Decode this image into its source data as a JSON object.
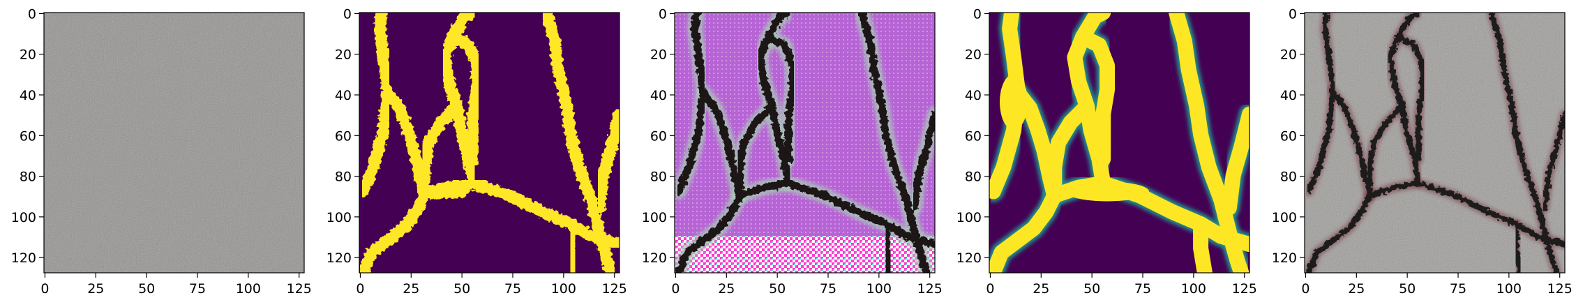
{
  "colors": {
    "background": "#ffffff",
    "axis": "#000000",
    "viridis_dark": "#440154",
    "viridis_yellow": "#fde725",
    "viridis_teal": "#21918c",
    "asphalt_base": "#8f8d8b",
    "crack_dark": "#1c1512",
    "magenta": "#b65ad8"
  },
  "chart_data": [
    {
      "type": "image",
      "content": "asphalt-texture",
      "xlim": [
        0,
        128
      ],
      "ylim": [
        128,
        0
      ],
      "xticks": [
        0,
        25,
        50,
        75,
        100,
        125
      ],
      "yticks": [
        0,
        20,
        40,
        60,
        80,
        100,
        120
      ],
      "title": "",
      "xlabel": "",
      "ylabel": ""
    },
    {
      "type": "image",
      "content": "binary-crack-mask",
      "colormap": "viridis",
      "xlim": [
        0,
        128
      ],
      "ylim": [
        128,
        0
      ],
      "xticks": [
        0,
        25,
        50,
        75,
        100,
        125
      ],
      "yticks": [
        0,
        20,
        40,
        60,
        80,
        100,
        120
      ],
      "title": "",
      "xlabel": "",
      "ylabel": ""
    },
    {
      "type": "image",
      "content": "magenta-crack-texture",
      "xlim": [
        0,
        128
      ],
      "ylim": [
        128,
        0
      ],
      "xticks": [
        0,
        25,
        50,
        75,
        100,
        125
      ],
      "yticks": [
        0,
        20,
        40,
        60,
        80,
        100,
        120
      ],
      "title": "",
      "xlabel": "",
      "ylabel": ""
    },
    {
      "type": "image",
      "content": "smooth-crack-mask",
      "colormap": "viridis",
      "xlim": [
        0,
        128
      ],
      "ylim": [
        128,
        0
      ],
      "xticks": [
        0,
        25,
        50,
        75,
        100,
        125
      ],
      "yticks": [
        0,
        20,
        40,
        60,
        80,
        100,
        120
      ],
      "title": "",
      "xlabel": "",
      "ylabel": ""
    },
    {
      "type": "image",
      "content": "asphalt-with-crack",
      "xlim": [
        0,
        128
      ],
      "ylim": [
        128,
        0
      ],
      "xticks": [
        0,
        25,
        50,
        75,
        100,
        125
      ],
      "yticks": [
        0,
        20,
        40,
        60,
        80,
        100,
        120
      ],
      "title": "",
      "xlabel": "",
      "ylabel": ""
    }
  ]
}
